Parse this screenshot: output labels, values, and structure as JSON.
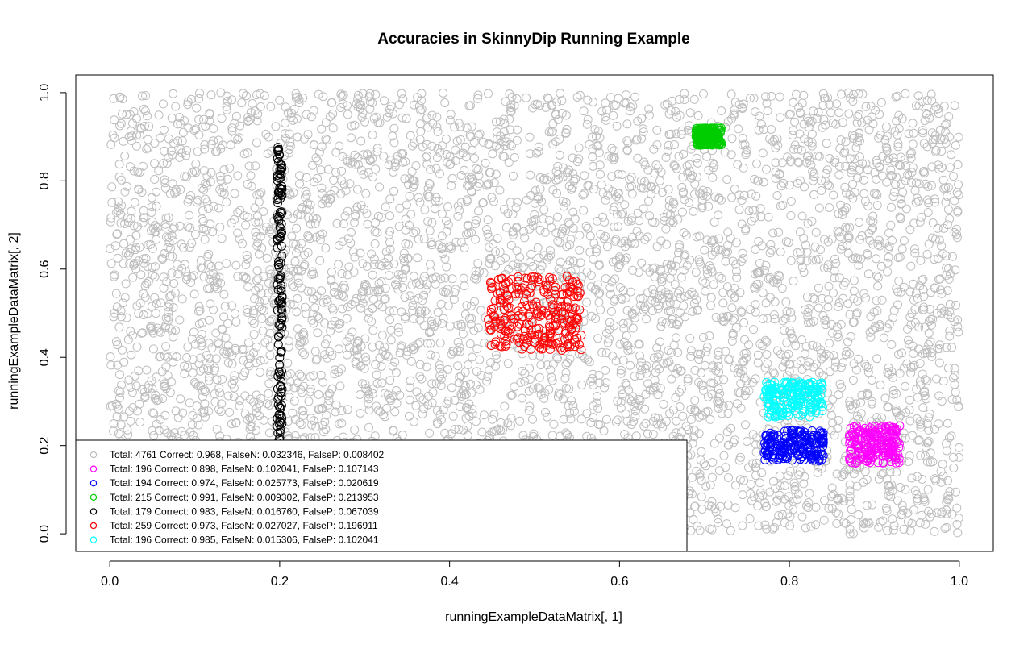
{
  "chart_data": {
    "type": "scatter",
    "title": "Accuracies in SkinnyDip Running Example",
    "xlabel": "runningExampleDataMatrix[, 1]",
    "ylabel": "runningExampleDataMatrix[, 2]",
    "xlim": [
      -0.04,
      1.04
    ],
    "ylim": [
      -0.04,
      1.04
    ],
    "x_ticks": [
      "0.0",
      "0.2",
      "0.4",
      "0.6",
      "0.8",
      "1.0"
    ],
    "y_ticks": [
      "0.0",
      "0.2",
      "0.4",
      "0.6",
      "0.8",
      "1.0"
    ],
    "grid": false,
    "legend_position": "bottom-left",
    "series": [
      {
        "name": "Total: 4761 Correct: 0.968, FalseN: 0.032346, FalseP: 0.008402",
        "color": "#bebebe",
        "total": 4761,
        "correct": 0.968,
        "false_n": 0.032346,
        "false_p": 0.008402,
        "region": {
          "x": [
            0.0,
            1.0
          ],
          "y": [
            0.0,
            1.0
          ]
        }
      },
      {
        "name": "Total: 196 Correct: 0.898, FalseN: 0.102041, FalseP: 0.107143",
        "color": "#ff00ff",
        "total": 196,
        "correct": 0.898,
        "false_n": 0.102041,
        "false_p": 0.107143,
        "region": {
          "x": [
            0.87,
            0.93
          ],
          "y": [
            0.16,
            0.245
          ]
        }
      },
      {
        "name": "Total: 194 Correct: 0.974, FalseN: 0.025773, FalseP: 0.020619",
        "color": "#0000ff",
        "total": 194,
        "correct": 0.974,
        "false_n": 0.025773,
        "false_p": 0.020619,
        "region": {
          "x": [
            0.77,
            0.84
          ],
          "y": [
            0.165,
            0.235
          ]
        }
      },
      {
        "name": "Total: 215 Correct: 0.991, FalseN: 0.009302, FalseP: 0.213953",
        "color": "#00cd00",
        "total": 215,
        "correct": 0.991,
        "false_n": 0.009302,
        "false_p": 0.213953,
        "region": {
          "x": [
            0.69,
            0.72
          ],
          "y": [
            0.88,
            0.92
          ]
        }
      },
      {
        "name": "Total: 179 Correct: 0.983, FalseN: 0.016760, FalseP: 0.067039",
        "color": "#000000",
        "total": 179,
        "correct": 0.983,
        "false_n": 0.01676,
        "false_p": 0.067039,
        "region": {
          "x": [
            0.197,
            0.203
          ],
          "y": [
            0.0,
            0.88
          ]
        }
      },
      {
        "name": "Total: 259 Correct: 0.973, FalseN: 0.027027, FalseP: 0.196911",
        "color": "#ff0000",
        "total": 259,
        "correct": 0.973,
        "false_n": 0.027027,
        "false_p": 0.196911,
        "region": {
          "x": [
            0.445,
            0.555
          ],
          "y": [
            0.415,
            0.585
          ]
        }
      },
      {
        "name": "Total: 196 Correct: 0.985, FalseN: 0.015306, FalseP: 0.102041",
        "color": "#00ffff",
        "total": 196,
        "correct": 0.985,
        "false_n": 0.015306,
        "false_p": 0.102041,
        "region": {
          "x": [
            0.77,
            0.84
          ],
          "y": [
            0.265,
            0.345
          ]
        }
      }
    ]
  }
}
